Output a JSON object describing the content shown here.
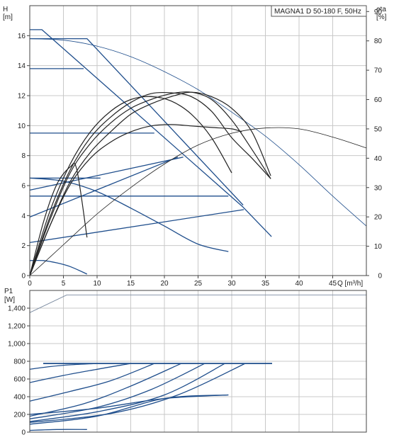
{
  "chart_data": [
    {
      "type": "line",
      "title": "MAGNA1 D 50-180 F, 50Hz",
      "ylabel_left": "H",
      "ylabel_left_unit": "[m]",
      "ylabel_right": "eta",
      "ylabel_right_unit": "[%]",
      "xlabel": "Q [m³/h]",
      "xlim": [
        0,
        50
      ],
      "ylim_left": [
        0,
        18
      ],
      "ylim_right": [
        0,
        92
      ],
      "x_ticks": [
        "0",
        "5",
        "10",
        "15",
        "20",
        "25",
        "30",
        "35",
        "40",
        "45"
      ],
      "y_ticks_left": [
        "0",
        "2",
        "4",
        "6",
        "8",
        "10",
        "12",
        "14",
        "16"
      ],
      "y_ticks_right": [
        "0",
        "10",
        "20",
        "30",
        "40",
        "50",
        "60",
        "70",
        "80",
        "90"
      ],
      "grid": true,
      "colors": {
        "curve": "#1f4e8c",
        "eff": "#222222",
        "grid": "#c8c8c8"
      },
      "series": [
        {
          "kind": "proportional",
          "x": [
            0,
            0.6,
            1.8,
            31.6,
            35.9
          ],
          "y": [
            16.4,
            16.4,
            16.4,
            4.6,
            2.6
          ]
        },
        {
          "kind": "constant",
          "x": [
            0,
            8.5,
            31.7
          ],
          "y": [
            15.8,
            15.8,
            4.7
          ]
        },
        {
          "kind": "constant",
          "x": [
            0,
            8.0
          ],
          "y": [
            13.8,
            13.8
          ]
        },
        {
          "kind": "constant",
          "x": [
            0,
            18.5
          ],
          "y": [
            9.5,
            9.5
          ]
        },
        {
          "kind": "constant",
          "x": [
            0,
            29.5
          ],
          "y": [
            5.3,
            5.3
          ]
        },
        {
          "kind": "constant",
          "x": [
            0,
            10.5
          ],
          "y": [
            6.5,
            6.5
          ]
        },
        {
          "kind": "proportional",
          "x": [
            0,
            22.8
          ],
          "y": [
            5.7,
            7.9
          ]
        },
        {
          "kind": "proportional",
          "x": [
            0,
            22.0
          ],
          "y": [
            3.9,
            7.9
          ]
        },
        {
          "kind": "proportional",
          "x": [
            0,
            31.8
          ],
          "y": [
            2.2,
            4.4
          ]
        },
        {
          "kind": "max",
          "x": [
            0,
            5,
            10,
            15,
            20,
            25,
            30,
            35,
            40,
            45,
            50
          ],
          "y": [
            15.8,
            15.7,
            15.3,
            14.6,
            13.6,
            12.4,
            10.9,
            9.3,
            7.4,
            5.3,
            3.3
          ]
        },
        {
          "kind": "min",
          "x": [
            0,
            5,
            10,
            15,
            20,
            25,
            29.5
          ],
          "y": [
            6.5,
            6.3,
            5.6,
            4.5,
            3.3,
            2.1,
            1.6
          ]
        },
        {
          "kind": "min",
          "x": [
            0,
            2,
            4,
            6,
            8.5
          ],
          "y": [
            1.0,
            1.0,
            0.85,
            0.6,
            0.1
          ]
        },
        {
          "kind": "eff",
          "x": [
            0,
            5,
            10,
            15,
            20,
            25,
            30,
            35,
            40,
            45,
            50
          ],
          "y": [
            0,
            10.5,
            21,
            30,
            38,
            44.5,
            48.5,
            50.3,
            50.0,
            47.2,
            43.5
          ],
          "axis": "right"
        },
        {
          "kind": "eff",
          "x": [
            0,
            3,
            6,
            9,
            12,
            15,
            18,
            21,
            24,
            27,
            30
          ],
          "y": [
            0,
            22,
            38,
            49,
            56,
            60,
            61,
            59.5,
            55,
            47,
            35
          ],
          "axis": "right"
        },
        {
          "kind": "eff",
          "x": [
            0,
            3,
            6,
            9,
            12,
            15,
            18,
            21,
            24,
            27,
            30,
            33,
            35.8
          ],
          "y": [
            0,
            20,
            36,
            47,
            54,
            59,
            62,
            62.3,
            61,
            56,
            47,
            40,
            33
          ],
          "axis": "right"
        },
        {
          "kind": "eff",
          "x": [
            0,
            3,
            6,
            9,
            12,
            15,
            18,
            21,
            24,
            27,
            30,
            33,
            35.8
          ],
          "y": [
            0,
            19,
            35,
            45,
            52,
            57,
            60,
            62,
            62.5,
            60,
            53,
            43,
            33
          ],
          "axis": "right"
        },
        {
          "kind": "eff",
          "x": [
            0,
            3,
            6,
            9,
            12,
            15,
            18,
            21,
            24,
            27,
            30,
            33,
            35.8
          ],
          "y": [
            0,
            17,
            32,
            42,
            49,
            55,
            58.5,
            61,
            62.5,
            61,
            57,
            49,
            34
          ],
          "axis": "right"
        },
        {
          "kind": "eff",
          "x": [
            0,
            3,
            6,
            9,
            12,
            15,
            18,
            21,
            24,
            27,
            30,
            31.5
          ],
          "y": [
            0,
            17,
            31,
            40,
            45.5,
            49,
            51,
            51.5,
            51,
            50.5,
            50,
            49
          ],
          "axis": "right"
        },
        {
          "kind": "eff",
          "x": [
            0,
            2,
            4,
            6,
            7,
            8.5
          ],
          "y": [
            0,
            18,
            31,
            37,
            36,
            13
          ],
          "axis": "right"
        }
      ]
    },
    {
      "type": "line",
      "title": "",
      "ylabel_left": "P1",
      "ylabel_left_unit": "[W]",
      "xlim": [
        0,
        50
      ],
      "ylim_left": [
        0,
        1600
      ],
      "y_ticks_left": [
        "0",
        "200",
        "400",
        "600",
        "800",
        "1,000",
        "1,200",
        "1,400"
      ],
      "grid": true,
      "series": [
        {
          "kind": "max",
          "x": [
            0,
            5.5,
            50
          ],
          "y": [
            1350,
            1550,
            1550
          ]
        },
        {
          "kind": "limit",
          "x": [
            2,
            36
          ],
          "y": [
            775,
            775
          ]
        },
        {
          "kind": "power",
          "x": [
            0,
            3,
            6,
            10
          ],
          "y": [
            710,
            740,
            760,
            775
          ]
        },
        {
          "kind": "power",
          "x": [
            0,
            5,
            10,
            15
          ],
          "y": [
            560,
            640,
            710,
            775
          ]
        },
        {
          "kind": "power",
          "x": [
            0,
            6,
            12,
            18.5
          ],
          "y": [
            350,
            460,
            580,
            775
          ]
        },
        {
          "kind": "power",
          "x": [
            0,
            8,
            15,
            22.5
          ],
          "y": [
            180,
            320,
            520,
            775
          ]
        },
        {
          "kind": "power",
          "x": [
            0,
            10,
            18,
            26
          ],
          "y": [
            150,
            280,
            480,
            775
          ]
        },
        {
          "kind": "power",
          "x": [
            0,
            10,
            20,
            29
          ],
          "y": [
            120,
            230,
            420,
            775
          ]
        },
        {
          "kind": "power",
          "x": [
            0,
            12,
            22,
            32
          ],
          "y": [
            110,
            210,
            420,
            775
          ]
        },
        {
          "kind": "power",
          "x": [
            0,
            10,
            20,
            29.5
          ],
          "y": [
            90,
            180,
            380,
            420
          ]
        },
        {
          "kind": "power",
          "x": [
            0,
            10,
            20,
            29.5
          ],
          "y": [
            200,
            270,
            380,
            420
          ]
        },
        {
          "kind": "power",
          "x": [
            0,
            4,
            8.5
          ],
          "y": [
            20,
            30,
            30
          ]
        }
      ]
    }
  ]
}
